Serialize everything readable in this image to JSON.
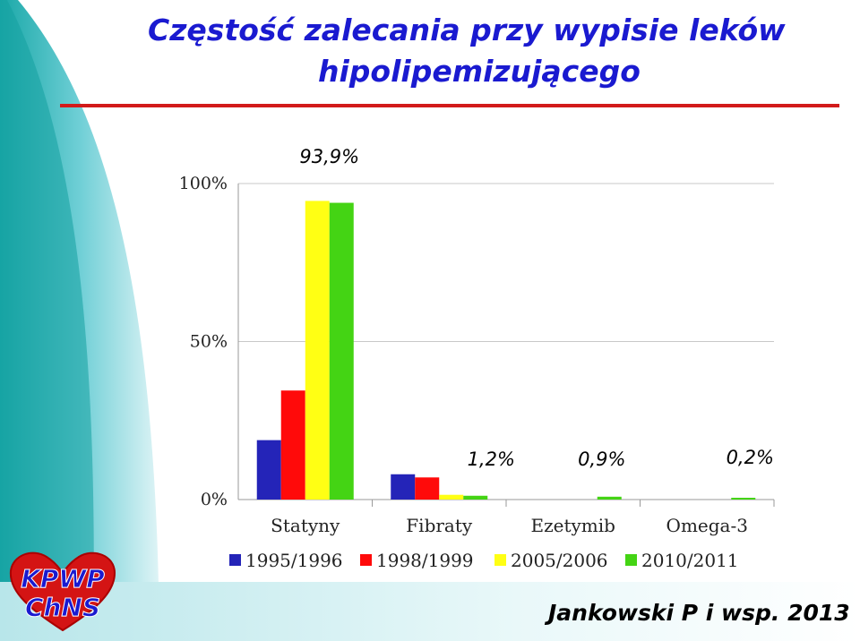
{
  "slide": {
    "title_line1": "Częstość zalecania przy wypisie leków",
    "title_line2": "hipolipemizującego",
    "author": "Jankowski P i wsp. 2013",
    "logo_text_line1": "KPWP",
    "logo_text_line2": "ChNS"
  },
  "colors": {
    "title": "#1a1ad0",
    "rule": "#d21a1a",
    "series": [
      "#2424b8",
      "#ff0a0a",
      "#ffff14",
      "#44d414"
    ]
  },
  "chart_data": {
    "type": "bar",
    "title": "",
    "xlabel": "",
    "ylabel": "",
    "ylim": [
      0,
      100
    ],
    "y_ticks": [
      {
        "value": 0,
        "label": "0%"
      },
      {
        "value": 50,
        "label": "50%"
      },
      {
        "value": 100,
        "label": "100%"
      }
    ],
    "categories": [
      "Statyny",
      "Fibraty",
      "Ezetymib",
      "Omega-3"
    ],
    "series": [
      {
        "name": "1995/1996",
        "values": [
          18.8,
          8.0,
          0,
          0
        ]
      },
      {
        "name": "1998/1999",
        "values": [
          34.5,
          7.0,
          0,
          0
        ]
      },
      {
        "name": "2005/2006",
        "values": [
          94.5,
          1.5,
          0,
          0
        ]
      },
      {
        "name": "2010/2011",
        "values": [
          93.9,
          1.2,
          0.9,
          0.2
        ]
      }
    ],
    "annotations": [
      {
        "text": "93,9%",
        "category": "Statyny"
      },
      {
        "text": "1,2%",
        "category": "Fibraty"
      },
      {
        "text": "0,9%",
        "category": "Ezetymib"
      },
      {
        "text": "0,2%",
        "category": "Omega-3"
      }
    ],
    "grid": true,
    "legend": "bottom"
  }
}
